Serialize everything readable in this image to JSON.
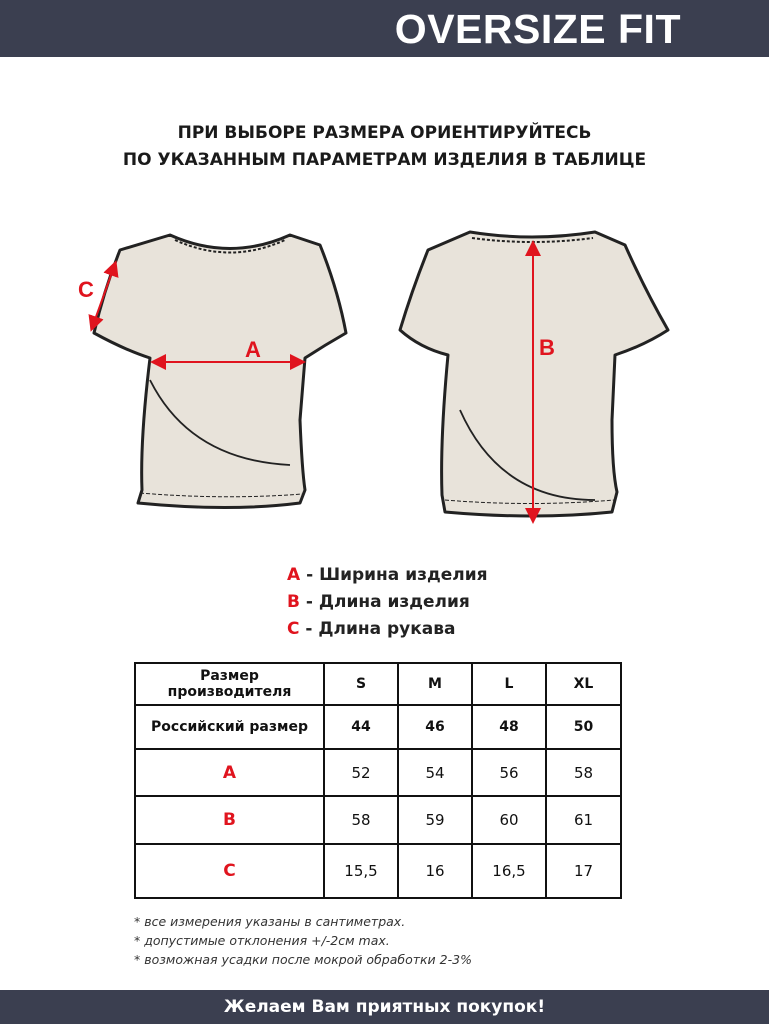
{
  "header": {
    "title": "OVERSIZE FIT"
  },
  "subtitle": [
    "ПРИ ВЫБОРЕ РАЗМЕРА ОРИЕНТИРУЙТЕСЬ",
    "ПО УКАЗАННЫМ ПАРАМЕТРАМ ИЗДЕЛИЯ В ТАБЛИЦЕ"
  ],
  "diagram": {
    "label_a": "A",
    "label_b": "B",
    "label_c": "C"
  },
  "legend": [
    {
      "key": "A",
      "text": " - Ширина изделия"
    },
    {
      "key": "B",
      "text": " - Длина изделия"
    },
    {
      "key": "C",
      "text": " - Длина рукава"
    }
  ],
  "table": {
    "header": [
      "Размер производителя",
      "S",
      "M",
      "L",
      "XL"
    ],
    "rows": [
      [
        "Российский размер",
        "44",
        "46",
        "48",
        "50"
      ],
      [
        "A",
        "52",
        "54",
        "56",
        "58"
      ],
      [
        "B",
        "58",
        "59",
        "60",
        "61"
      ],
      [
        "C",
        "15,5",
        "16",
        "16,5",
        "17"
      ]
    ]
  },
  "notes": [
    "* все измерения указаны в сантиметрах.",
    "* допустимые отклонения +/-2см max.",
    "* возможная усадки после мокрой обработки 2-3%"
  ],
  "footer": {
    "text": "Желаем Вам приятных покупок!"
  },
  "colors": {
    "bar": "#3b3f50",
    "accent": "#e0141e",
    "fabric": "#e8e3da"
  }
}
